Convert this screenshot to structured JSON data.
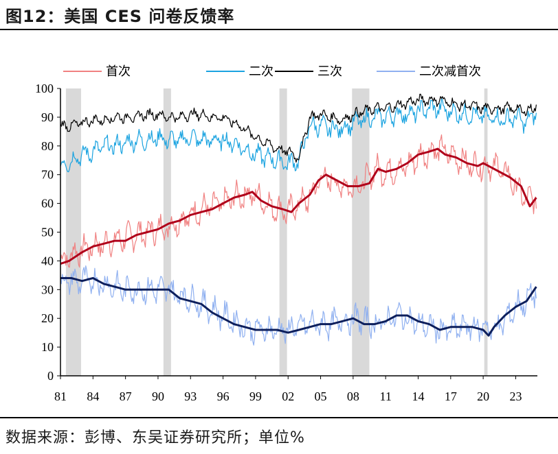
{
  "header": {
    "title": "图12：美国 CES 问卷反馈率"
  },
  "footer": {
    "source": "数据来源：彭博、东吴证券研究所；单位%"
  },
  "chart_data": {
    "type": "line",
    "title": "",
    "xlabel": "",
    "ylabel": "",
    "xlim": [
      1981,
      2025
    ],
    "ylim": [
      0,
      100
    ],
    "x_ticks": [
      1981,
      1984,
      1987,
      1990,
      1993,
      1996,
      1999,
      2002,
      2005,
      2008,
      2011,
      2014,
      2017,
      2020,
      2023
    ],
    "x_tick_labels": [
      "81",
      "84",
      "87",
      "90",
      "93",
      "96",
      "99",
      "02",
      "05",
      "08",
      "11",
      "14",
      "17",
      "20",
      "23"
    ],
    "y_ticks": [
      0,
      10,
      20,
      30,
      40,
      50,
      60,
      70,
      80,
      90,
      100
    ],
    "grid": false,
    "legend_position": "top",
    "recessions": [
      [
        1981.5,
        1982.9
      ],
      [
        1990.5,
        1991.2
      ],
      [
        2001.2,
        2001.9
      ],
      [
        2007.9,
        2009.5
      ],
      [
        2020.1,
        2020.4
      ]
    ],
    "series": [
      {
        "name": "首次",
        "color": "#f08080",
        "style": "noisy",
        "noise": 5,
        "x": [
          1981,
          1982,
          1983,
          1984,
          1985,
          1986,
          1987,
          1988,
          1989,
          1990,
          1991,
          1992,
          1993,
          1994,
          1995,
          1996,
          1997,
          1998,
          1999,
          2000,
          2001,
          2002,
          2003,
          2004,
          2005,
          2006,
          2007,
          2008,
          2009,
          2010,
          2011,
          2012,
          2013,
          2014,
          2015,
          2016,
          2017,
          2018,
          2019,
          2020,
          2021,
          2022,
          2023,
          2024,
          2024.9
        ],
        "y": [
          40,
          42,
          44,
          45,
          46,
          47,
          48,
          49,
          50,
          51,
          52,
          54,
          56,
          58,
          59,
          60,
          62,
          63,
          63,
          60,
          58,
          57,
          60,
          62,
          69,
          68,
          66,
          66,
          67,
          72,
          71,
          72,
          73,
          76,
          78,
          79,
          77,
          75,
          73,
          73,
          73,
          71,
          66,
          61,
          62
        ]
      },
      {
        "name": "二次",
        "color": "#1aa3e0",
        "style": "noisy",
        "noise": 3.5,
        "x": [
          1981,
          1982,
          1983,
          1984,
          1985,
          1986,
          1987,
          1988,
          1989,
          1990,
          1991,
          1992,
          1993,
          1994,
          1995,
          1996,
          1997,
          1998,
          1999,
          2000,
          2001,
          2002,
          2003,
          2004,
          2005,
          2006,
          2007,
          2008,
          2009,
          2010,
          2011,
          2012,
          2013,
          2014,
          2015,
          2016,
          2017,
          2018,
          2019,
          2020,
          2021,
          2022,
          2023,
          2024,
          2024.9
        ],
        "y": [
          73,
          75,
          77,
          78,
          80,
          80,
          81,
          82,
          82,
          83,
          82,
          82,
          83,
          82,
          82,
          82,
          81,
          79,
          77,
          76,
          75,
          74,
          75,
          87,
          87,
          86,
          86,
          88,
          89,
          90,
          90,
          91,
          91,
          92,
          93,
          93,
          92,
          91,
          91,
          90,
          90,
          89,
          90,
          88,
          92
        ]
      },
      {
        "name": "三次",
        "color": "#000000",
        "style": "noisy",
        "noise": 2,
        "x": [
          1981,
          1982,
          1983,
          1984,
          1985,
          1986,
          1987,
          1988,
          1989,
          1990,
          1991,
          1992,
          1993,
          1994,
          1995,
          1996,
          1997,
          1998,
          1999,
          2000,
          2001,
          2002,
          2003,
          2004,
          2005,
          2006,
          2007,
          2008,
          2009,
          2010,
          2011,
          2012,
          2013,
          2014,
          2015,
          2016,
          2017,
          2018,
          2019,
          2020,
          2021,
          2022,
          2023,
          2024,
          2024.9
        ],
        "y": [
          87,
          87,
          88,
          89,
          89,
          90,
          90,
          90,
          91,
          91,
          90,
          90,
          91,
          91,
          90,
          90,
          88,
          86,
          83,
          81,
          79,
          78,
          76,
          90,
          91,
          90,
          89,
          91,
          92,
          93,
          93,
          94,
          95,
          96,
          96,
          96,
          95,
          94,
          94,
          93,
          93,
          93,
          93,
          92,
          94
        ]
      },
      {
        "name": "二次减首次",
        "color": "#8fb0f0",
        "style": "noisy",
        "noise": 5,
        "x": [
          1981,
          1982,
          1983,
          1984,
          1985,
          1986,
          1987,
          1988,
          1989,
          1990,
          1991,
          1992,
          1993,
          1994,
          1995,
          1996,
          1997,
          1998,
          1999,
          2000,
          2001,
          2002,
          2003,
          2004,
          2005,
          2006,
          2007,
          2008,
          2009,
          2010,
          2011,
          2012,
          2013,
          2014,
          2015,
          2016,
          2017,
          2018,
          2019,
          2020,
          2021,
          2022,
          2023,
          2024,
          2024.9
        ],
        "y": [
          33,
          33,
          33,
          33,
          32,
          31,
          30,
          30,
          30,
          30,
          30,
          28,
          27,
          25,
          23,
          21,
          19,
          17,
          16,
          16,
          16,
          16,
          17,
          18,
          18,
          18,
          19,
          20,
          19,
          18,
          19,
          21,
          20,
          18,
          17,
          16,
          16,
          17,
          17,
          17,
          16,
          19,
          24,
          26,
          30
        ]
      },
      {
        "name": "",
        "color": "#b0001a",
        "style": "smooth",
        "x": [
          1981,
          1981.8,
          1983,
          1984,
          1985,
          1986,
          1987,
          1988,
          1989,
          1990,
          1991,
          1992,
          1993,
          1994,
          1995,
          1996,
          1997,
          1998,
          1998.7,
          1999.5,
          2000.5,
          2001.5,
          2002.3,
          2003,
          2004,
          2004.8,
          2005.5,
          2006.5,
          2007.5,
          2008.5,
          2009.5,
          2010.3,
          2011,
          2012,
          2013,
          2014,
          2015,
          2015.8,
          2016.5,
          2017.5,
          2018.5,
          2019.5,
          2020,
          2020.5,
          2021.5,
          2022.5,
          2023.5,
          2024.3,
          2024.9
        ],
        "y": [
          39,
          40,
          43,
          45,
          46,
          47,
          47,
          49,
          50,
          51,
          53,
          54,
          56,
          57,
          58,
          60,
          62,
          63,
          64,
          61,
          59,
          58,
          57,
          60,
          63,
          68,
          70,
          68,
          66,
          66,
          67,
          72,
          71,
          72,
          74,
          77,
          78,
          79,
          77,
          76,
          74,
          73,
          74,
          73,
          71,
          69,
          66,
          59,
          62
        ]
      },
      {
        "name": "",
        "color": "#0d1f5c",
        "style": "smooth",
        "x": [
          1981,
          1982,
          1983,
          1984,
          1985,
          1986,
          1987,
          1988,
          1989,
          1990,
          1991,
          1992,
          1993,
          1994,
          1995,
          1996,
          1997,
          1998,
          1999,
          2000,
          2001,
          2002,
          2003,
          2004,
          2005,
          2006,
          2007,
          2008,
          2009,
          2010,
          2011,
          2012,
          2013,
          2014,
          2015,
          2016,
          2017,
          2018,
          2019,
          2020,
          2020.5,
          2021,
          2022,
          2023,
          2024,
          2024.9
        ],
        "y": [
          34,
          34,
          33,
          34,
          32,
          31,
          30,
          30,
          30,
          30,
          30,
          27,
          26,
          25,
          22,
          20,
          18,
          17,
          16,
          16,
          16,
          15,
          16,
          17,
          18,
          18,
          19,
          20,
          18,
          18,
          19,
          21,
          21,
          19,
          18,
          16,
          17,
          17,
          17,
          16,
          14,
          17,
          21,
          24,
          26,
          31
        ]
      }
    ]
  }
}
